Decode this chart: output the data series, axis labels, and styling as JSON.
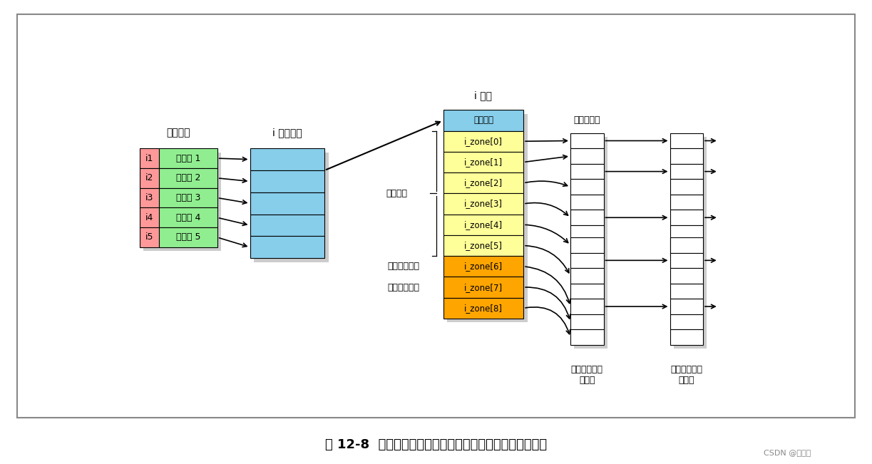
{
  "background_color": "#ffffff",
  "title_text": "图 12-8  通过文件名最终找到对应文件磁盘块位置的示意图",
  "title_fontsize": 13,
  "dir_label": "文件目录",
  "inode_part_label": "i 节点部分",
  "inode_label": "i 节点",
  "dir_entries": [
    {
      "id": "i1",
      "name": "文件名 1"
    },
    {
      "id": "i2",
      "name": "文件名 2"
    },
    {
      "id": "i3",
      "name": "文件名 3"
    },
    {
      "id": "i4",
      "name": "文件名 4"
    },
    {
      "id": "i5",
      "name": "文件名 5"
    }
  ],
  "id_color": "#ff9999",
  "name_color": "#90ee90",
  "inode_part_color": "#87ceeb",
  "inode_other_color": "#87ceeb",
  "inode_zone_color_light": "#ffff99",
  "inode_zone_color_mid": "#ffd700",
  "inode_zone_color_orange": "#ffa500",
  "inode_zones": [
    "其他字段",
    "i_zone[0]",
    "i_zone[1]",
    "i_zone[2]",
    "i_zone[3]",
    "i_zone[4]",
    "i_zone[5]",
    "i_zone[6]",
    "i_zone[7]",
    "i_zone[8]"
  ],
  "direct_label": "直接块号",
  "indirect1_label": "一次间接块号",
  "indirect2_label": "二次间接块号",
  "block1_label": "一次间接块",
  "block2_level1_label": "二次间接块的\n一级块",
  "block2_level2_label": "二次间接块的\n二级块",
  "num_inode_part_rows": 5,
  "num_block_rows_upper": 8,
  "num_block_rows_lower": 7,
  "shadow_color": "#cccccc",
  "border_color": "#aaaaaa",
  "watermark": "CSDN @奇小茗"
}
